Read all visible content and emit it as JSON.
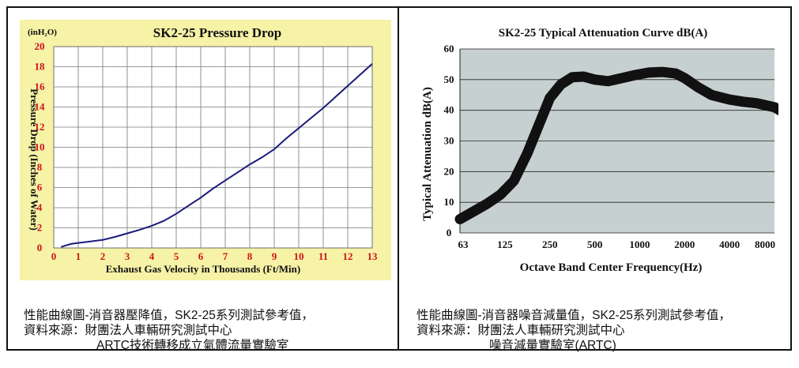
{
  "left_caption": {
    "line1": "性能曲線圖-消音器壓降值，SK2-25系列測試參考值，",
    "line2": "資料來源：財團法人車輛研究測試中心",
    "line3": "ARTC技術轉移成立氣體流量實驗室"
  },
  "right_caption": {
    "line1": "性能曲線圖-消音器噪音減量值，SK2-25系列測試參考值，",
    "line2": "資料來源：財團法人車輛研究測試中心",
    "line3": "噪音減量實驗室(ARTC)"
  },
  "chart_data": [
    {
      "type": "line",
      "title": "SK2-25 Pressure Drop",
      "unit_label": "(inH₂O)",
      "xlabel": "Exhaust Gas Velocity in Thousands (Ft/Min)",
      "ylabel": "Pressure Drop (Inches of Water)",
      "xlim": [
        0,
        13
      ],
      "ylim": [
        0,
        20
      ],
      "x_ticks": [
        0,
        1,
        2,
        3,
        4,
        5,
        6,
        7,
        8,
        9,
        10,
        11,
        12,
        13
      ],
      "y_ticks": [
        0,
        2,
        4,
        6,
        8,
        10,
        12,
        14,
        16,
        18,
        20
      ],
      "grid": true,
      "background_color": "#f6f2a6",
      "plot_color": "#ffffff",
      "tick_color": "#d0121b",
      "line_color": "#1a1a7a",
      "series": [
        {
          "x": [
            0.3,
            0.7,
            1,
            1.5,
            2,
            2.5,
            3,
            3.5,
            4,
            4.5,
            5,
            5.5,
            6,
            6.5,
            7,
            7.5,
            8,
            8.5,
            9,
            9.5,
            10,
            10.5,
            11,
            11.5,
            12,
            12.5,
            13
          ],
          "values": [
            0.1,
            0.4,
            0.5,
            0.65,
            0.8,
            1.1,
            1.45,
            1.8,
            2.2,
            2.7,
            3.4,
            4.2,
            5.0,
            5.9,
            6.7,
            7.5,
            8.3,
            9.0,
            9.8,
            10.9,
            11.9,
            12.9,
            13.9,
            15.0,
            16.1,
            17.2,
            18.3
          ]
        }
      ]
    },
    {
      "type": "line",
      "title": "SK2-25 Typical Attenuation Curve dB(A)",
      "xlabel": "Octave Band Center Frequency(Hz)",
      "ylabel": "Typical Attenuation dB(A)",
      "categories": [
        "63",
        "125",
        "250",
        "500",
        "1000",
        "2000",
        "4000",
        "8000"
      ],
      "ylim": [
        0,
        60
      ],
      "y_ticks": [
        0,
        10,
        20,
        30,
        40,
        50,
        60
      ],
      "grid": true,
      "plot_color": "#c7d0d0",
      "line_color": "#111111",
      "series": [
        {
          "x": [
            0,
            0.3,
            0.6,
            0.9,
            1.2,
            1.5,
            1.75,
            2.0,
            2.25,
            2.5,
            2.75,
            3.0,
            3.3,
            3.6,
            3.9,
            4.2,
            4.5,
            4.8,
            5.0,
            5.3,
            5.6,
            6.0,
            6.3,
            6.6,
            7.0,
            7.3,
            7.6,
            8.0
          ],
          "values": [
            4.5,
            7.0,
            9.5,
            12.5,
            17,
            26,
            35,
            44,
            48.5,
            50.8,
            51,
            50,
            49.5,
            50.5,
            51.5,
            52.3,
            52.5,
            52,
            50.5,
            47.5,
            45,
            43.5,
            42.8,
            42.3,
            41,
            38.5,
            35.5,
            31.5
          ]
        }
      ]
    }
  ]
}
